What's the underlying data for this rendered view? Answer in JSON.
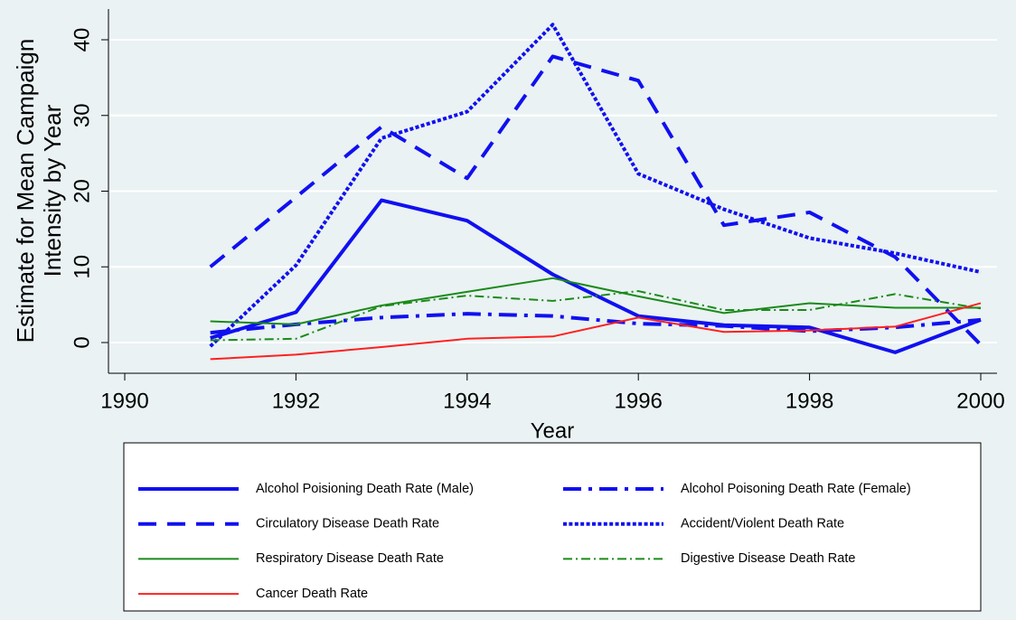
{
  "chart_data": {
    "type": "line",
    "ylabel": [
      "Estimate for Mean Campaign",
      "Intensity by Year"
    ],
    "xlabel": "Year",
    "x": [
      1991,
      1992,
      1993,
      1994,
      1995,
      1996,
      1997,
      1998,
      1999,
      2000
    ],
    "xlim": [
      1989.81,
      2000.19
    ],
    "xticks": [
      1990,
      1992,
      1994,
      1996,
      1998,
      2000
    ],
    "ylim": [
      -4.06,
      44.06
    ],
    "yticks": [
      0,
      10,
      20,
      30,
      40
    ],
    "grid": true,
    "series": [
      {
        "name": "Alcohol Poisioning Death Rate (Male)",
        "color": "#1010f0",
        "style": "solid",
        "width": 4,
        "values": [
          0.6,
          4,
          18.8,
          16.1,
          9,
          3.5,
          2.3,
          2.0,
          -1.3,
          3
        ]
      },
      {
        "name": "Alcohol Poisoning Death Rate (Female)",
        "color": "#1010f0",
        "style": "dashdot",
        "width": 4,
        "values": [
          1.3,
          2.4,
          3.3,
          3.8,
          3.5,
          2.5,
          2.2,
          1.5,
          2.0,
          3.0
        ]
      },
      {
        "name": "Circulatory Disease Death Rate",
        "color": "#1010f0",
        "style": "dash",
        "width": 4,
        "values": [
          10,
          19.2,
          28.5,
          21.7,
          37.8,
          34.6,
          15.5,
          17.2,
          11.3,
          -0.3
        ]
      },
      {
        "name": "Accident/Violent Death Rate",
        "color": "#1010f0",
        "style": "dot",
        "width": 4,
        "values": [
          -0.5,
          10.2,
          27,
          30.5,
          42,
          22.3,
          17.6,
          13.8,
          11.8,
          9.3
        ]
      },
      {
        "name": "Respiratory Disease Death Rate",
        "color": "#1a8a1a",
        "style": "solid",
        "width": 2,
        "values": [
          2.8,
          2.4,
          4.9,
          6.7,
          8.5,
          6.1,
          3.9,
          5.2,
          4.6,
          4.6
        ]
      },
      {
        "name": "Digestive Disease Death Rate",
        "color": "#1a8a1a",
        "style": "dashdot",
        "width": 2,
        "values": [
          0.3,
          0.5,
          4.8,
          6.2,
          5.5,
          6.8,
          4.3,
          4.3,
          6.4,
          4.5
        ]
      },
      {
        "name": "Cancer Death Rate",
        "color": "#ff2020",
        "style": "solid",
        "width": 2,
        "values": [
          -2.2,
          -1.6,
          -0.6,
          0.5,
          0.8,
          3.3,
          1.4,
          1.6,
          2.1,
          5.2
        ]
      }
    ]
  }
}
